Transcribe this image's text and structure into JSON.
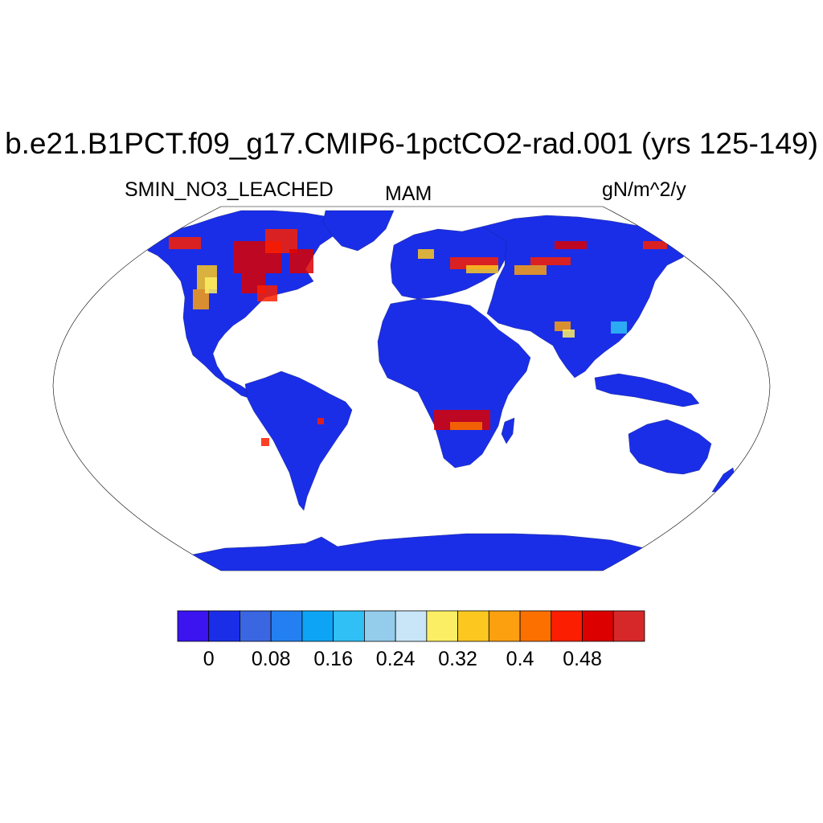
{
  "title": "b.e21.B1PCT.f09_g17.CMIP6-1pctCO2-rad.001 (yrs 125-149)",
  "left_label": "SMIN_NO3_LEACHED",
  "center_label": "MAM",
  "right_label": "gN/m^2/y",
  "map": {
    "projection": "Robinson",
    "variable": "SMIN_NO3_LEACHED",
    "season": "MAM",
    "units": "gN/m^2/y",
    "dominant_value_range": "0-0.04",
    "land_fill_color": "#1a2ee8",
    "ocean_color": "#ffffff",
    "high_value_regions": [
      "Northern Canada / Hudson Bay",
      "Central North America",
      "Europe",
      "Southern Africa",
      "South Asia",
      "Eastern Asia"
    ]
  },
  "colorbar": {
    "colors": [
      "#3c14f0",
      "#1a2ee8",
      "#3a66e2",
      "#2480f0",
      "#0ea4f6",
      "#30c0f6",
      "#94ccec",
      "#c8e6f8",
      "#fcee64",
      "#fcc820",
      "#fca010",
      "#fc7000",
      "#fc1e00",
      "#dc0000",
      "#d62828"
    ],
    "tick_values": [
      "0",
      "0.08",
      "0.16",
      "0.24",
      "0.32",
      "0.4",
      "0.48"
    ],
    "boundaries": [
      0,
      0.04,
      0.08,
      0.12,
      0.16,
      0.2,
      0.24,
      0.28,
      0.32,
      0.36,
      0.4,
      0.44,
      0.48,
      0.52
    ]
  }
}
